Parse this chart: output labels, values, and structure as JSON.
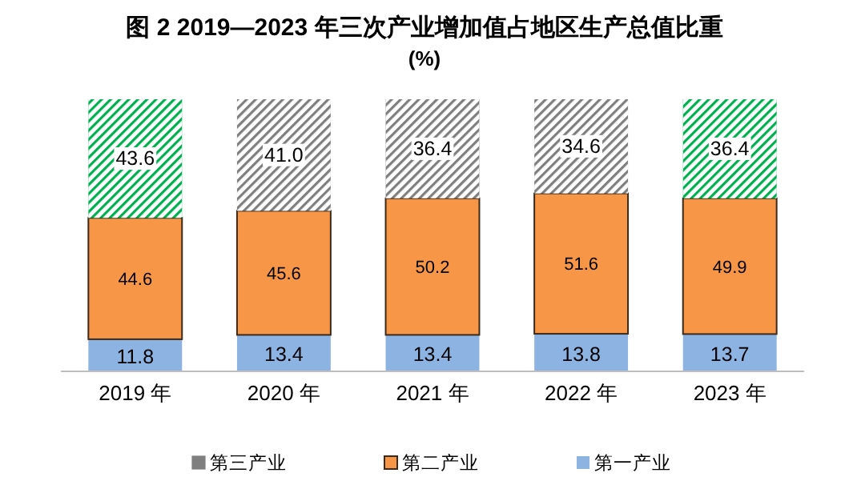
{
  "chart_data": {
    "type": "bar",
    "stacked": true,
    "title": "图 2  2019—2023 年三次产业增加值占地区生产总值比重",
    "subtitle": "(%)",
    "categories": [
      "2019 年",
      "2020 年",
      "2021 年",
      "2022 年",
      "2023 年"
    ],
    "series": [
      {
        "name": "第一产业",
        "color": "#8db3e2",
        "values": [
          11.8,
          13.4,
          13.4,
          13.8,
          13.7
        ],
        "value_labels": [
          "11.8",
          "13.4",
          "13.4",
          "13.8",
          "13.7"
        ]
      },
      {
        "name": "第二产业",
        "color": "#f79646",
        "values": [
          44.6,
          45.6,
          50.2,
          51.6,
          49.9
        ],
        "value_labels": [
          "44.6",
          "45.6",
          "50.2",
          "51.6",
          "49.9"
        ]
      },
      {
        "name": "第三产业",
        "color": "#7f7f7f",
        "colors": [
          "#00b050",
          "#7f7f7f",
          "#7f7f7f",
          "#7f7f7f",
          "#00b050"
        ],
        "values": [
          43.6,
          41.0,
          36.4,
          34.6,
          36.4
        ],
        "value_labels": [
          "43.6",
          "41.0",
          "36.4",
          "34.6",
          "36.4"
        ]
      }
    ],
    "legend": "bottom",
    "grid": false
  }
}
